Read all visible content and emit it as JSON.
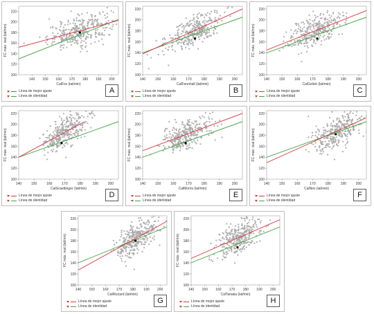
{
  "legend": {
    "best_fit_label": "Línea de mejor ajuste",
    "identity_label": "Línea de identidad"
  },
  "colors": {
    "best_fit": "#d9363e",
    "identity": "#3fa33f",
    "points": "#a9a9a9",
    "mean_point": "#000000",
    "frame": "#bdbdbd"
  },
  "chart_data": [
    {
      "type": "scatter",
      "letter": "A",
      "xlabel": "CalFox (lat/min)",
      "ylabel": "FC máx. real (lat/min)",
      "xlim": [
        130,
        205
      ],
      "ylim": [
        100,
        230
      ],
      "xticks": [
        140,
        150,
        160,
        170,
        180,
        190,
        200
      ],
      "yticks": [
        100,
        120,
        140,
        160,
        180,
        200,
        220
      ],
      "center": [
        176,
        180
      ],
      "x_sd": 12,
      "y_noise": 14,
      "best_fit": [
        [
          130,
          152
        ],
        [
          205,
          203
        ]
      ],
      "identity": [
        [
          130,
          130
        ],
        [
          205,
          205
        ]
      ],
      "mean_point": [
        176,
        180
      ]
    },
    {
      "type": "scatter",
      "letter": "B",
      "xlabel": "CalFennhall (lat/min)",
      "ylabel": "FC máx. real (lat/min)",
      "xlim": [
        140,
        205
      ],
      "ylim": [
        100,
        225
      ],
      "xticks": [
        140,
        150,
        160,
        170,
        180,
        190,
        200
      ],
      "yticks": [
        100,
        120,
        140,
        160,
        180,
        200,
        220
      ],
      "center": [
        173,
        180
      ],
      "x_sd": 9,
      "y_noise": 14,
      "best_fit": [
        [
          140,
          138
        ],
        [
          205,
          220
        ]
      ],
      "identity": [
        [
          140,
          140
        ],
        [
          205,
          205
        ]
      ],
      "mean_point": [
        174,
        166
      ]
    },
    {
      "type": "scatter",
      "letter": "C",
      "xlabel": "CalGelish (lat/min)",
      "ylabel": "FC máx. real (lat/min)",
      "xlim": [
        140,
        205
      ],
      "ylim": [
        100,
        225
      ],
      "xticks": [
        140,
        150,
        160,
        170,
        180,
        190,
        200
      ],
      "yticks": [
        100,
        120,
        140,
        160,
        180,
        200,
        220
      ],
      "center": [
        172,
        180
      ],
      "x_sd": 9,
      "y_noise": 14,
      "best_fit": [
        [
          140,
          145
        ],
        [
          205,
          217
        ]
      ],
      "identity": [
        [
          140,
          140
        ],
        [
          205,
          205
        ]
      ],
      "mean_point": [
        173,
        166
      ]
    },
    {
      "type": "scatter",
      "letter": "D",
      "xlabel": "CalGraettinger (lat/min)",
      "ylabel": "FC máx. real (lat/min)",
      "xlim": [
        140,
        205
      ],
      "ylim": [
        100,
        225
      ],
      "xticks": [
        140,
        150,
        160,
        170,
        180,
        190,
        200
      ],
      "yticks": [
        100,
        120,
        140,
        160,
        180,
        200,
        220
      ],
      "center": [
        170,
        182
      ],
      "x_sd": 7,
      "y_noise": 14,
      "best_fit": [
        [
          140,
          140
        ],
        [
          183,
          205
        ]
      ],
      "identity": [
        [
          140,
          140
        ],
        [
          205,
          205
        ]
      ],
      "mean_point": [
        168,
        166
      ]
    },
    {
      "type": "scatter",
      "letter": "E",
      "xlabel": "CalMorris (lat/min)",
      "ylabel": "FC máx. real (lat/min)",
      "xlim": [
        140,
        205
      ],
      "ylim": [
        100,
        225
      ],
      "xticks": [
        140,
        150,
        160,
        170,
        180,
        190,
        200
      ],
      "yticks": [
        100,
        120,
        140,
        160,
        180,
        200,
        220
      ],
      "center": [
        168,
        182
      ],
      "x_sd": 8,
      "y_noise": 14,
      "best_fit": [
        [
          140,
          152
        ],
        [
          205,
          220
        ]
      ],
      "identity": [
        [
          140,
          140
        ],
        [
          205,
          205
        ]
      ],
      "mean_point": [
        168,
        166
      ]
    },
    {
      "type": "scatter",
      "letter": "F",
      "xlabel": "CalNes (lat/min)",
      "ylabel": "FC máx. real (lat/min)",
      "xlim": [
        140,
        205
      ],
      "ylim": [
        100,
        225
      ],
      "xticks": [
        140,
        150,
        160,
        170,
        180,
        190,
        200
      ],
      "yticks": [
        100,
        120,
        140,
        160,
        180,
        200,
        220
      ],
      "center": [
        185,
        182
      ],
      "x_sd": 8,
      "y_noise": 14,
      "best_fit": [
        [
          140,
          130
        ],
        [
          205,
          212
        ]
      ],
      "identity": [
        [
          140,
          140
        ],
        [
          205,
          205
        ]
      ],
      "mean_point": [
        185,
        182
      ]
    },
    {
      "type": "scatter",
      "letter": "G",
      "xlabel": "CalRizzard (lat/min)",
      "ylabel": "FC máx. real (lat/min)",
      "xlim": [
        140,
        205
      ],
      "ylim": [
        100,
        225
      ],
      "xticks": [
        140,
        150,
        160,
        170,
        180,
        190,
        200
      ],
      "yticks": [
        100,
        120,
        140,
        160,
        180,
        200,
        220
      ],
      "center": [
        182,
        182
      ],
      "x_sd": 7,
      "y_noise": 13,
      "best_fit": [
        [
          140,
          127
        ],
        [
          205,
          215
        ]
      ],
      "identity": [
        [
          140,
          140
        ],
        [
          205,
          205
        ]
      ],
      "mean_point": [
        182,
        180
      ]
    },
    {
      "type": "scatter",
      "letter": "H",
      "xlabel": "CalTanaka (lat/min)",
      "ylabel": "FC máx. real (lat/min)",
      "xlim": [
        140,
        205
      ],
      "ylim": [
        100,
        225
      ],
      "xticks": [
        140,
        150,
        160,
        170,
        180,
        190,
        200
      ],
      "yticks": [
        100,
        120,
        140,
        160,
        180,
        200,
        220
      ],
      "center": [
        175,
        182
      ],
      "x_sd": 8,
      "y_noise": 14,
      "best_fit": [
        [
          140,
          148
        ],
        [
          205,
          218
        ]
      ],
      "identity": [
        [
          140,
          140
        ],
        [
          205,
          205
        ]
      ],
      "mean_point": [
        174,
        168
      ]
    }
  ]
}
